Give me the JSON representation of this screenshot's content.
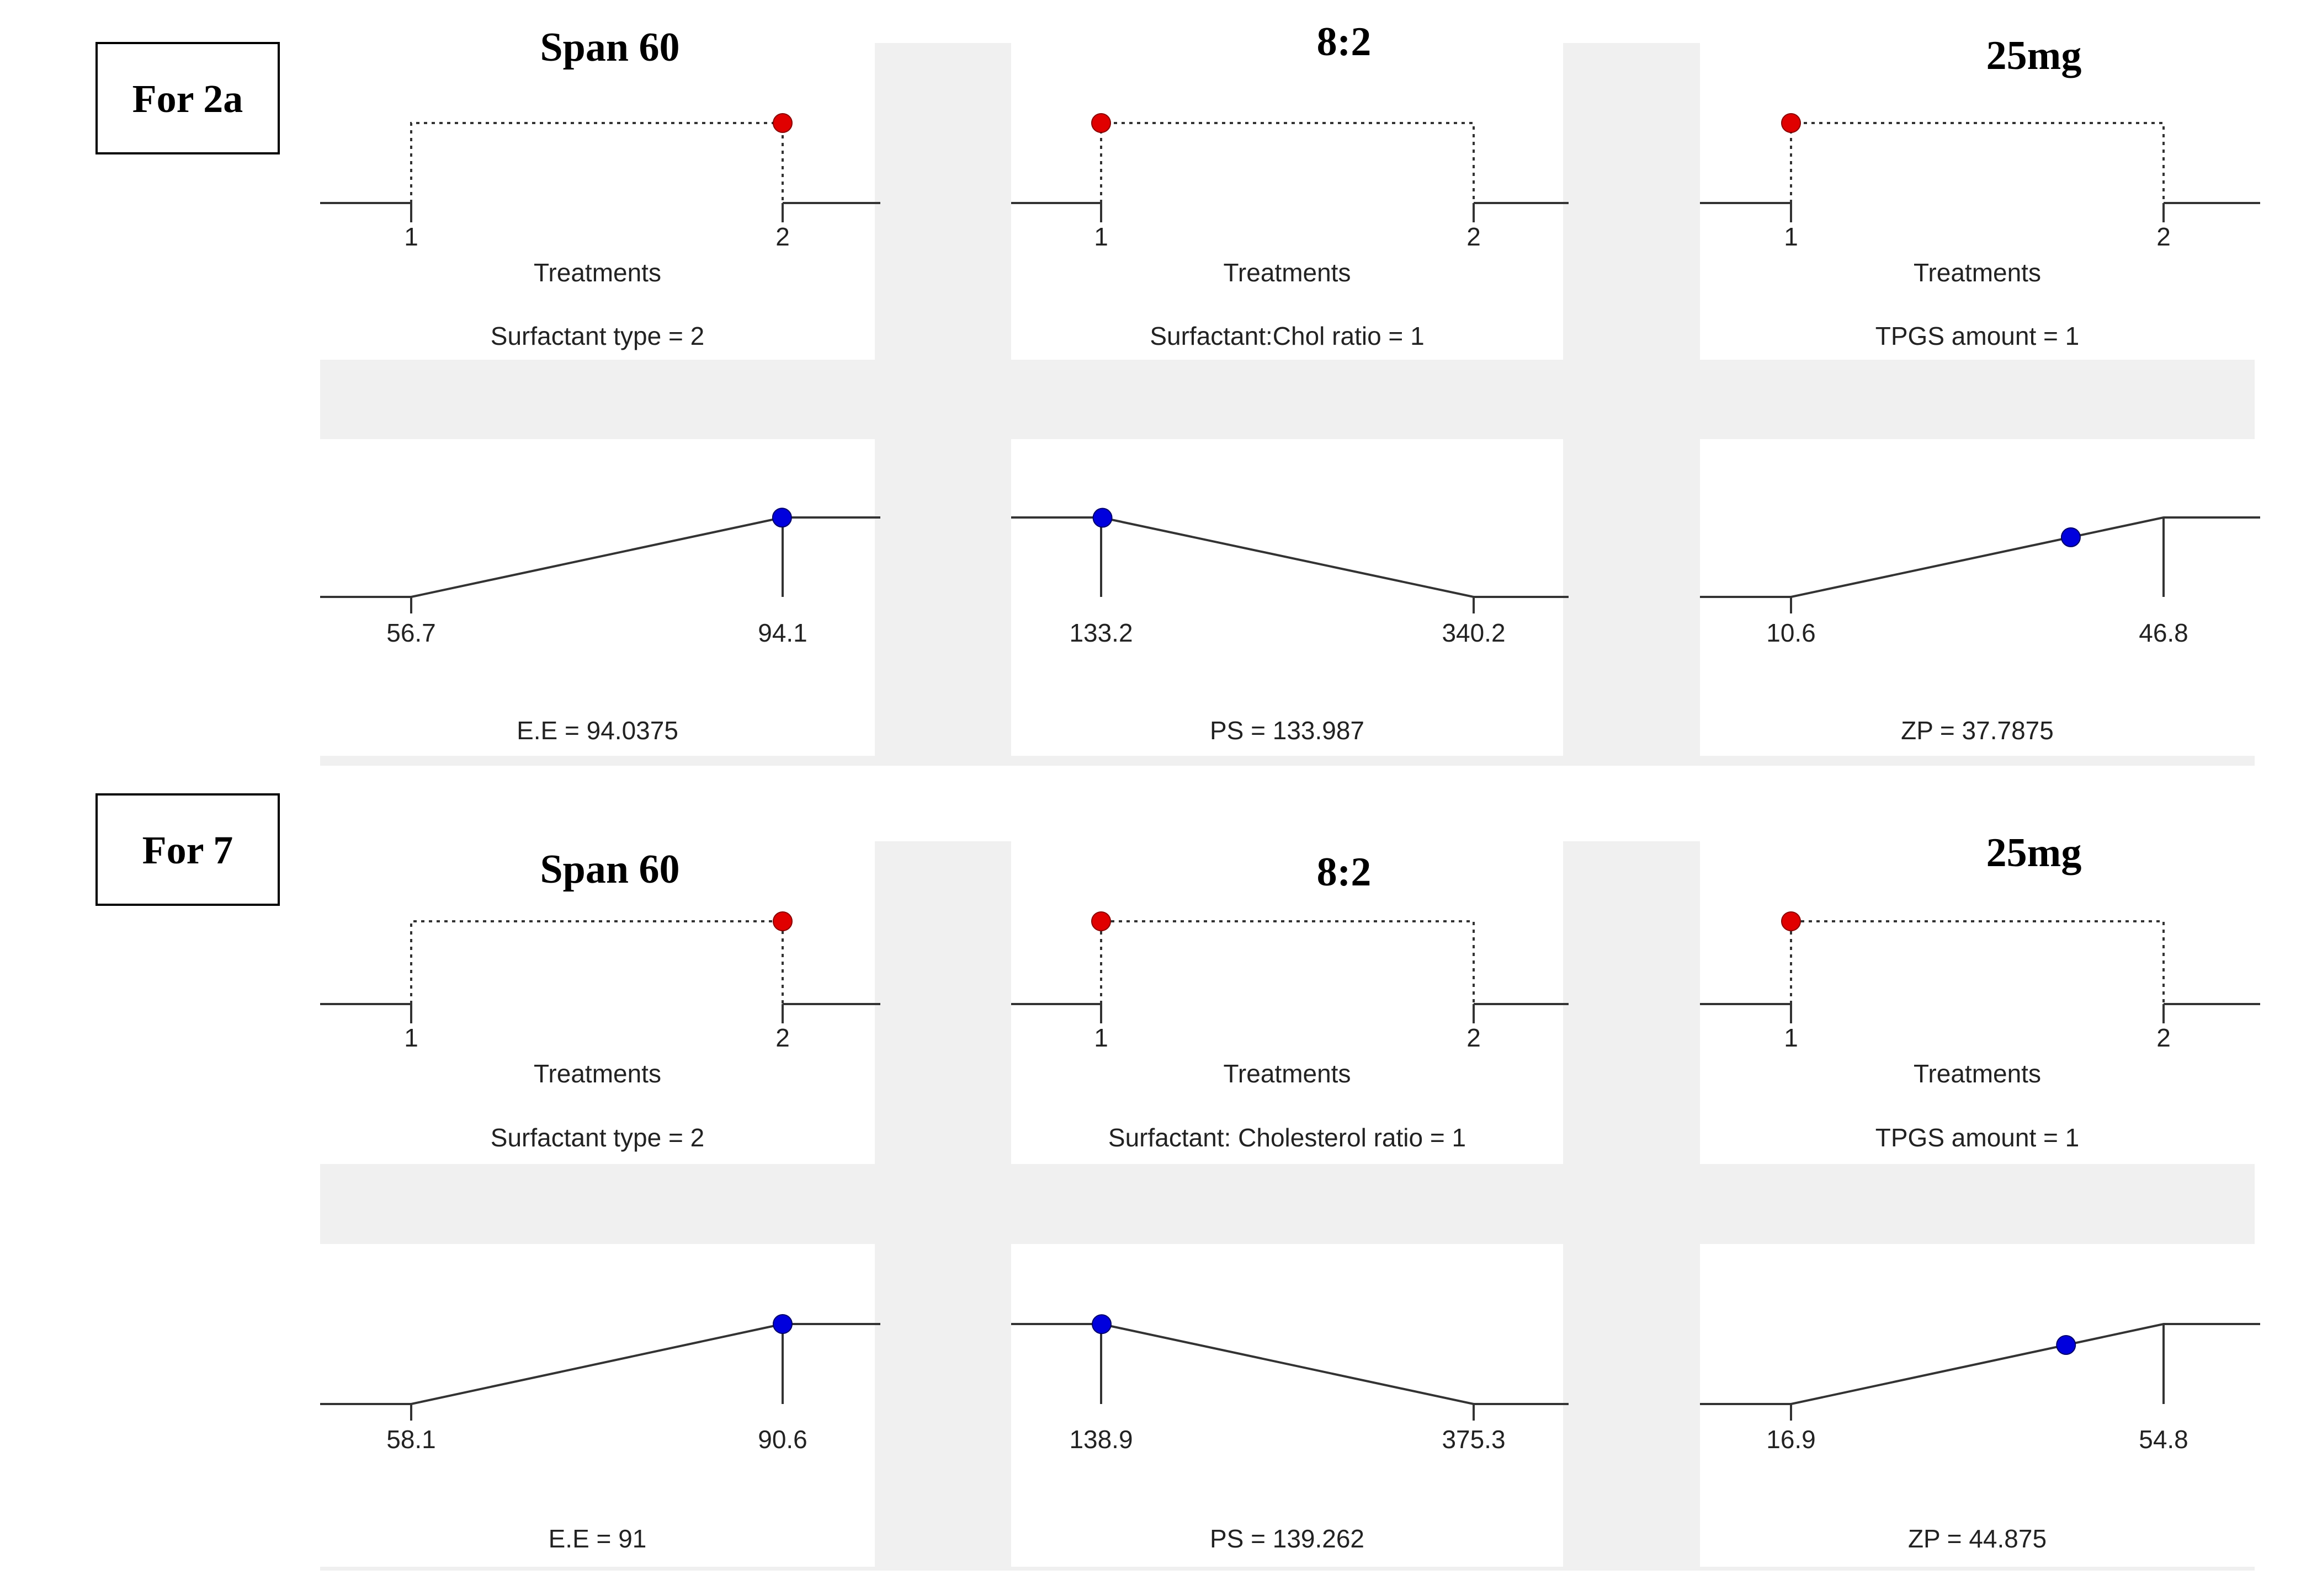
{
  "colors": {
    "factor_dot": "#e00000",
    "response_dot": "#0000dd",
    "gap": "#f0f0f0"
  },
  "chart_data": [
    {
      "type": "line",
      "row_label": "For 2a",
      "factors": [
        {
          "header": "Span 60",
          "xlabel": "Treatments",
          "caption": "Surfactant type = 2",
          "levels": [
            "1",
            "2"
          ],
          "selected": 2
        },
        {
          "header": "8:2",
          "xlabel": "Treatments",
          "caption": "Surfactant:Chol ratio = 1",
          "levels": [
            "1",
            "2"
          ],
          "selected": 1
        },
        {
          "header": "25mg",
          "xlabel": "Treatments",
          "caption": "TPGS amount = 1",
          "levels": [
            "1",
            "2"
          ],
          "selected": 1
        }
      ],
      "responses": [
        {
          "caption": "E.E = 94.0375",
          "low": 56.7,
          "high": 94.1,
          "low_label": "56.7",
          "high_label": "94.1",
          "value": 94.0375,
          "slope": "up"
        },
        {
          "caption": "PS = 133.987",
          "low": 133.2,
          "high": 340.2,
          "low_label": "133.2",
          "high_label": "340.2",
          "value": 133.987,
          "slope": "down"
        },
        {
          "caption": "ZP = 37.7875",
          "low": 10.6,
          "high": 46.8,
          "low_label": "10.6",
          "high_label": "46.8",
          "value": 37.7875,
          "slope": "up"
        }
      ]
    },
    {
      "type": "line",
      "row_label": "For 7",
      "factors": [
        {
          "header": "Span 60",
          "xlabel": "Treatments",
          "caption": "Surfactant type = 2",
          "levels": [
            "1",
            "2"
          ],
          "selected": 2
        },
        {
          "header": "8:2",
          "xlabel": "Treatments",
          "caption": "Surfactant: Cholesterol ratio = 1",
          "levels": [
            "1",
            "2"
          ],
          "selected": 1
        },
        {
          "header": "25mg",
          "xlabel": "Treatments",
          "caption": "TPGS amount = 1",
          "levels": [
            "1",
            "2"
          ],
          "selected": 1
        }
      ],
      "responses": [
        {
          "caption": "E.E = 91",
          "low": 58.1,
          "high": 90.6,
          "low_label": "58.1",
          "high_label": "90.6",
          "value": 91,
          "slope": "up"
        },
        {
          "caption": "PS = 139.262",
          "low": 138.9,
          "high": 375.3,
          "low_label": "138.9",
          "high_label": "375.3",
          "value": 139.262,
          "slope": "down"
        },
        {
          "caption": "ZP = 44.875",
          "low": 16.9,
          "high": 54.8,
          "low_label": "16.9",
          "high_label": "54.8",
          "value": 44.875,
          "slope": "up"
        }
      ]
    }
  ]
}
